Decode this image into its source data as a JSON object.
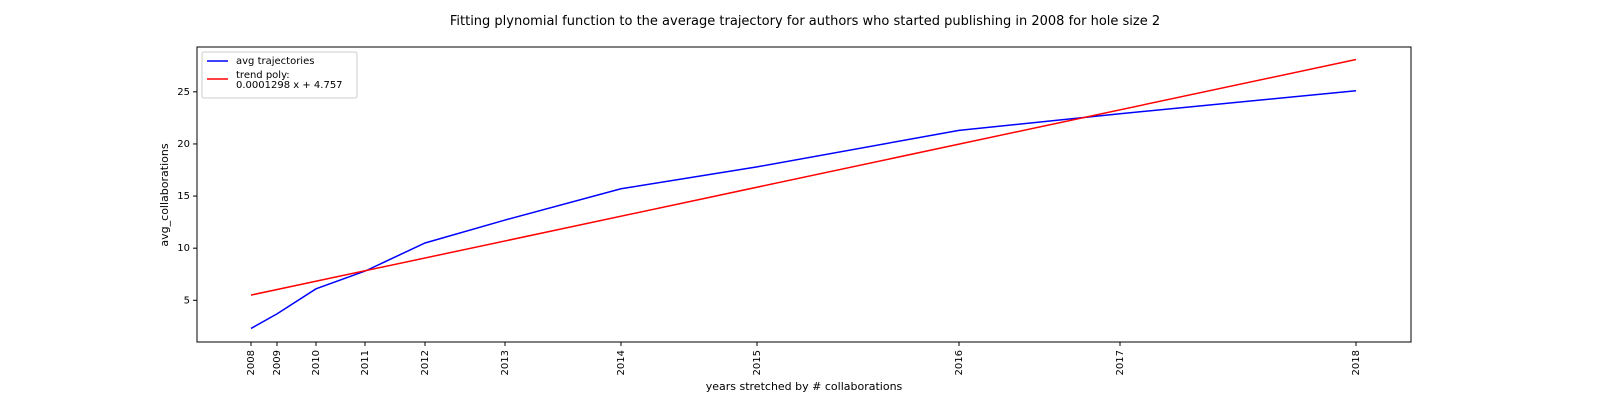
{
  "chart_data": {
    "type": "line",
    "title": "Fitting plynomial function to the average trajectory for authors who started publishing in 2008 for hole size 2",
    "xlabel": "years stretched by # collaborations",
    "ylabel": "avg_collaborations",
    "x_tick_labels": [
      "2008",
      "2009",
      "2010",
      "2011",
      "2012",
      "2013",
      "2014",
      "2015",
      "2016",
      "2017",
      "2018"
    ],
    "y_ticks": [
      5,
      10,
      15,
      20,
      25
    ],
    "ylim": [
      1.0,
      29.3
    ],
    "grid": false,
    "legend_position": "upper-left",
    "series": [
      {
        "name": "avg trajectories",
        "color": "#0000ff",
        "x": [
          "2008",
          "2009",
          "2010",
          "2011",
          "2012",
          "2013",
          "2014",
          "2015",
          "2016",
          "2017",
          "2018"
        ],
        "y": [
          2.3,
          3.7,
          6.1,
          7.8,
          10.5,
          12.7,
          15.7,
          17.8,
          21.3,
          22.9,
          25.1
        ]
      },
      {
        "name": "trend poly:\n0.0001298 x + 4.757",
        "color": "#ff0000",
        "x": [
          "2008",
          "2018"
        ],
        "y": [
          5.5,
          28.1
        ]
      }
    ]
  },
  "legend": {
    "entries": [
      {
        "lines": [
          "avg trajectories"
        ],
        "color": "#0000ff"
      },
      {
        "lines": [
          "trend poly:",
          "0.0001298 x + 4.757"
        ],
        "color": "#ff0000"
      }
    ]
  }
}
